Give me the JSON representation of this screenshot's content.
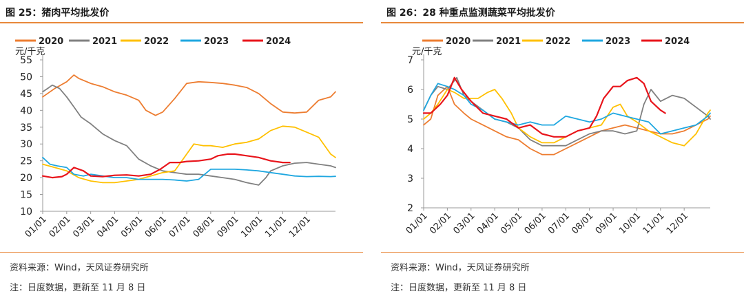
{
  "colors": {
    "2020": "#ed7d31",
    "2021": "#808080",
    "2022": "#ffc000",
    "2023": "#1fa7e0",
    "2024": "#e8141b",
    "accent": "#e8883a"
  },
  "left": {
    "title": "图 25：猪肉平均批发价",
    "source": "资料来源：Wind，天风证券研究所",
    "note": "注：日度数据，更新至 11 月 8 日"
  },
  "right": {
    "title": "图 26：28 种重点监测蔬菜平均批发价",
    "source": "资料来源：Wind，天风证券研究所",
    "note": "注：日度数据，更新至 11 月 8 日"
  },
  "chart_data": [
    {
      "type": "line",
      "title": "猪肉平均批发价",
      "ylabel": "元/千克",
      "ylim": [
        10,
        55
      ],
      "yticks": [
        10,
        15,
        20,
        25,
        30,
        35,
        40,
        45,
        50,
        55
      ],
      "categories": [
        "01/01",
        "02/01",
        "03/01",
        "04/01",
        "05/01",
        "06/01",
        "07/01",
        "08/01",
        "09/01",
        "10/01",
        "11/01",
        "12/01"
      ],
      "xlim": [
        1,
        13.2
      ],
      "legend_position": "top",
      "grid": false,
      "series": [
        {
          "name": "2020",
          "color": "#ed7d31",
          "x": [
            1,
            1.5,
            2,
            2.3,
            2.5,
            3,
            3.5,
            4,
            4.5,
            5,
            5.3,
            5.7,
            6,
            6.5,
            7,
            7.5,
            8,
            8.5,
            9,
            9.5,
            10,
            10.5,
            11,
            11.5,
            12,
            12.5,
            13,
            13.2
          ],
          "y": [
            44,
            46.5,
            48.5,
            50.5,
            49.5,
            48,
            47,
            45.5,
            44.5,
            43,
            40,
            38.5,
            39.5,
            43.5,
            48,
            48.5,
            48.3,
            48,
            47.5,
            46.8,
            45,
            42,
            39.5,
            39.2,
            39.5,
            43,
            44,
            45.5
          ]
        },
        {
          "name": "2021",
          "color": "#808080",
          "x": [
            1,
            1.2,
            1.4,
            1.7,
            2,
            2.3,
            2.6,
            3,
            3.5,
            4,
            4.5,
            5,
            5.5,
            6,
            6.5,
            7,
            7.5,
            8,
            8.5,
            9,
            9.5,
            10,
            10.3,
            10.5,
            11,
            11.5,
            12,
            12.5,
            13,
            13.2
          ],
          "y": [
            45.5,
            46.5,
            47.5,
            46.5,
            44,
            41,
            38,
            36,
            33,
            31,
            29.5,
            25.5,
            23.5,
            22,
            21.5,
            21,
            21,
            20.5,
            20,
            19.5,
            18.5,
            17.8,
            20,
            22,
            23.5,
            24.3,
            24.5,
            24,
            23.5,
            23
          ]
        },
        {
          "name": "2022",
          "color": "#ffc000",
          "x": [
            1,
            1.5,
            2,
            2.5,
            3,
            3.5,
            4,
            4.5,
            5,
            5.5,
            6,
            6.5,
            7,
            7.3,
            7.7,
            8,
            8.5,
            9,
            9.5,
            10,
            10.5,
            11,
            11.5,
            12,
            12.5,
            13,
            13.2
          ],
          "y": [
            24,
            23,
            22,
            20,
            19,
            18.5,
            18.5,
            19,
            19.5,
            20.5,
            21.5,
            22,
            27,
            30,
            29.5,
            29.5,
            29,
            30,
            30.5,
            31.5,
            34,
            35.3,
            35,
            33.5,
            32,
            27,
            26
          ]
        },
        {
          "name": "2023",
          "color": "#1fa7e0",
          "x": [
            1,
            1.3,
            1.6,
            2,
            2.3,
            2.7,
            3,
            3.5,
            4,
            4.5,
            5,
            5.5,
            6,
            6.5,
            7,
            7.5,
            8,
            8.5,
            9,
            9.5,
            10,
            10.5,
            11,
            11.5,
            12,
            12.5,
            13,
            13.2
          ],
          "y": [
            26,
            24,
            23.5,
            23,
            21,
            20.5,
            21,
            20.5,
            20,
            20,
            19.5,
            19.5,
            19.5,
            19.3,
            19,
            19.5,
            22.5,
            22.5,
            22.5,
            22.3,
            22,
            21.5,
            21,
            20.5,
            20.3,
            20.4,
            20.3,
            20.4
          ]
        },
        {
          "name": "2024",
          "color": "#e8141b",
          "x": [
            1,
            1.4,
            1.8,
            2,
            2.3,
            2.7,
            3,
            3.5,
            4,
            4.5,
            5,
            5.5,
            5.9,
            6.3,
            6.7,
            7,
            7.5,
            8,
            8.3,
            8.7,
            9,
            9.5,
            10,
            10.5,
            11,
            11.3
          ],
          "y": [
            20.5,
            20,
            20.3,
            21,
            23,
            22,
            20.5,
            20.3,
            20.7,
            20.8,
            20.5,
            21,
            22.5,
            24.5,
            24.5,
            24.8,
            25,
            25.5,
            26.5,
            27,
            27,
            26.5,
            26,
            25,
            24.5,
            24.5
          ]
        }
      ]
    },
    {
      "type": "line",
      "title": "28 种重点监测蔬菜平均批发价",
      "ylabel": "元/千克",
      "ylim": [
        2,
        7
      ],
      "yticks": [
        2,
        3,
        4,
        5,
        6,
        7
      ],
      "categories": [
        "01/01",
        "02/01",
        "03/01",
        "04/01",
        "05/01",
        "06/01",
        "07/01",
        "08/01",
        "09/01",
        "10/01",
        "11/01",
        "12/01"
      ],
      "xlim": [
        1,
        13.1
      ],
      "legend_position": "top",
      "grid": false,
      "series": [
        {
          "name": "2020",
          "color": "#ed7d31",
          "x": [
            1,
            1.3,
            1.6,
            2,
            2.3,
            2.7,
            3,
            3.5,
            4,
            4.5,
            5,
            5.5,
            6,
            6.5,
            7,
            7.5,
            8,
            8.5,
            9,
            9.5,
            10,
            10.5,
            11,
            11.5,
            12,
            12.5,
            13,
            13.1
          ],
          "y": [
            4.8,
            5,
            5.8,
            6.1,
            5.5,
            5.2,
            5,
            4.8,
            4.6,
            4.4,
            4.3,
            4,
            3.8,
            3.8,
            4,
            4.2,
            4.4,
            4.6,
            4.7,
            4.8,
            4.7,
            4.6,
            4.5,
            4.5,
            4.6,
            4.8,
            5,
            5.1
          ]
        },
        {
          "name": "2021",
          "color": "#808080",
          "x": [
            1,
            1.3,
            1.6,
            2,
            2.4,
            2.7,
            3,
            3.5,
            4,
            4.5,
            5,
            5.5,
            6,
            6.5,
            7,
            7.5,
            8,
            8.5,
            9,
            9.5,
            10,
            10.3,
            10.6,
            11,
            11.5,
            12,
            12.5,
            13,
            13.1
          ],
          "y": [
            5.3,
            5.8,
            6.1,
            6,
            6.4,
            5.8,
            5.6,
            5.3,
            5,
            4.9,
            4.7,
            4.3,
            4.1,
            4.1,
            4.1,
            4.3,
            4.5,
            4.6,
            4.6,
            4.5,
            4.6,
            5.5,
            6,
            5.6,
            5.8,
            5.7,
            5.4,
            5.1,
            5
          ]
        },
        {
          "name": "2022",
          "color": "#ffc000",
          "x": [
            1,
            1.3,
            1.6,
            2,
            2.3,
            2.7,
            3,
            3.3,
            3.7,
            4,
            4.3,
            4.7,
            5,
            5.5,
            6,
            6.5,
            7,
            7.5,
            8,
            8.5,
            9,
            9.3,
            9.6,
            10,
            10.5,
            11,
            11.5,
            12,
            12.5,
            13,
            13.1
          ],
          "y": [
            5,
            5.2,
            5.5,
            6,
            5.9,
            5.7,
            5.7,
            5.7,
            5.9,
            6,
            5.7,
            5.2,
            4.7,
            4.4,
            4.2,
            4.2,
            4.4,
            4.6,
            4.7,
            4.8,
            5.4,
            5.5,
            5.1,
            4.9,
            4.6,
            4.4,
            4.2,
            4.1,
            4.5,
            5.2,
            5.3
          ]
        },
        {
          "name": "2023",
          "color": "#1fa7e0",
          "x": [
            1,
            1.3,
            1.6,
            2,
            2.3,
            2.7,
            3,
            3.5,
            4,
            4.5,
            5,
            5.5,
            6,
            6.5,
            7,
            7.5,
            8,
            8.5,
            9,
            9.5,
            10,
            10.5,
            11,
            11.5,
            12,
            12.5,
            13,
            13.1
          ],
          "y": [
            5.3,
            5.8,
            6.2,
            6.1,
            6,
            5.8,
            5.5,
            5.3,
            5,
            4.9,
            4.8,
            4.9,
            4.8,
            4.8,
            5.1,
            5,
            4.9,
            5,
            5.2,
            5.1,
            5,
            4.9,
            4.5,
            4.6,
            4.7,
            4.8,
            5.1,
            5.2
          ]
        },
        {
          "name": "2024",
          "color": "#e8141b",
          "x": [
            1,
            1.3,
            1.7,
            2,
            2.3,
            2.6,
            3,
            3.5,
            4,
            4.5,
            5,
            5.5,
            6,
            6.5,
            7,
            7.5,
            8,
            8.3,
            8.6,
            9,
            9.3,
            9.6,
            10,
            10.3,
            10.6,
            11,
            11.2
          ],
          "y": [
            5.2,
            5.2,
            5.5,
            5.8,
            6.4,
            6,
            5.6,
            5.2,
            5.1,
            5,
            4.7,
            4.8,
            4.5,
            4.4,
            4.4,
            4.6,
            4.7,
            5.1,
            5.7,
            6.1,
            6.1,
            6.3,
            6.4,
            6.2,
            5.6,
            5.3,
            5.2
          ]
        }
      ]
    }
  ]
}
